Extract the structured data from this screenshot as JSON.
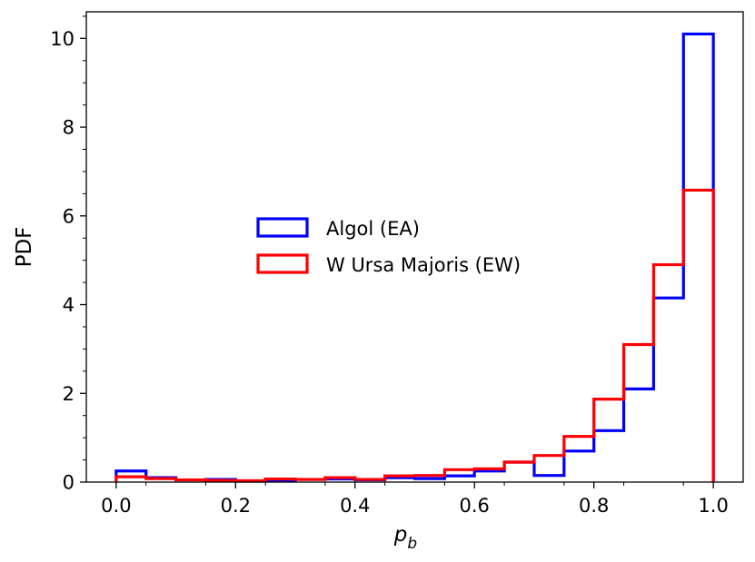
{
  "chart_data": {
    "type": "step-histogram",
    "bin_edges": [
      0.0,
      0.05,
      0.1,
      0.15,
      0.2,
      0.25,
      0.3,
      0.35,
      0.4,
      0.45,
      0.5,
      0.55,
      0.6,
      0.65,
      0.7,
      0.75,
      0.8,
      0.85,
      0.9,
      0.95,
      1.0
    ],
    "series": [
      {
        "name": "Algol (EA)",
        "color": "#0000ff",
        "values": [
          0.25,
          0.1,
          0.05,
          0.06,
          0.02,
          0.03,
          0.06,
          0.07,
          0.05,
          0.1,
          0.08,
          0.14,
          0.25,
          0.45,
          0.15,
          0.7,
          1.16,
          2.1,
          4.15,
          10.1
        ]
      },
      {
        "name": "W Ursa Majoris (EW)",
        "color": "#ff0000",
        "values": [
          0.12,
          0.08,
          0.05,
          0.04,
          0.03,
          0.07,
          0.06,
          0.1,
          0.06,
          0.14,
          0.15,
          0.28,
          0.3,
          0.45,
          0.6,
          1.03,
          1.87,
          3.1,
          4.9,
          6.58
        ]
      }
    ],
    "xlabel_base": "p",
    "xlabel_sub": "b",
    "ylabel": "PDF",
    "xlim": [
      -0.05,
      1.05
    ],
    "ylim": [
      0,
      10.6
    ],
    "xticks": [
      0.0,
      0.2,
      0.4,
      0.6,
      0.8,
      1.0
    ],
    "xtick_labels": [
      "0.0",
      "0.2",
      "0.4",
      "0.6",
      "0.8",
      "1.0"
    ],
    "yticks": [
      0,
      2,
      4,
      6,
      8,
      10
    ],
    "ytick_labels": [
      "0",
      "2",
      "4",
      "6",
      "8",
      "10"
    ],
    "legend_position": "center-left",
    "grid": false
  }
}
